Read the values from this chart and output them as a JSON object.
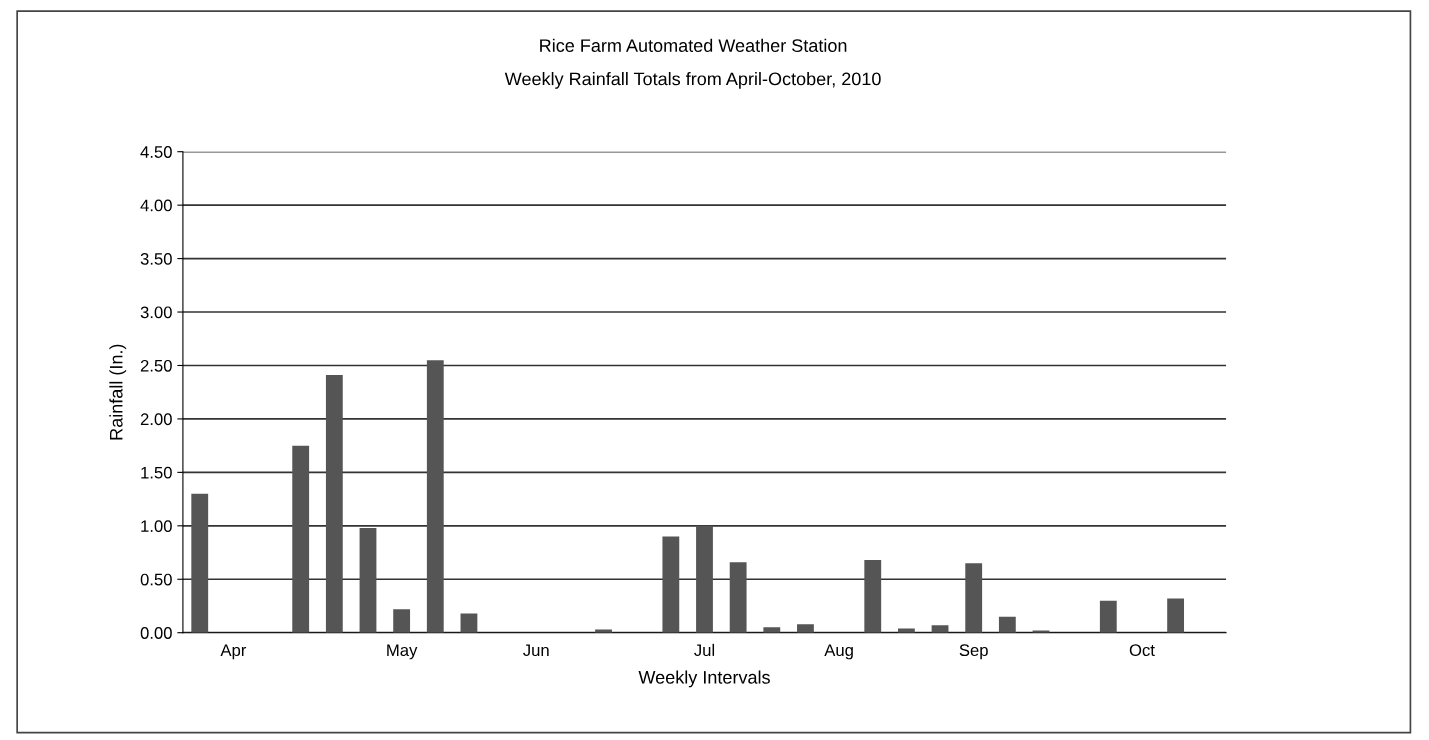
{
  "chart_data": {
    "type": "bar",
    "title": "Rice Farm Automated Weather Station",
    "subtitle": "Weekly Rainfall Totals from April-October, 2010",
    "xlabel": "Weekly Intervals",
    "ylabel": "Rainfall (In.)",
    "categories": [
      null,
      "Apr",
      null,
      null,
      null,
      null,
      "May",
      null,
      null,
      null,
      "Jun",
      null,
      null,
      null,
      null,
      "Jul",
      null,
      null,
      null,
      "Aug",
      null,
      null,
      null,
      "Sep",
      null,
      null,
      null,
      null,
      "Oct",
      null,
      null
    ],
    "values": [
      1.3,
      0,
      0,
      1.75,
      2.41,
      0.98,
      0.22,
      2.55,
      0.18,
      0,
      0,
      0,
      0.03,
      0,
      0.9,
      1.0,
      0.66,
      0.05,
      0.08,
      0,
      0.68,
      0.04,
      0.07,
      0.65,
      0.15,
      0.02,
      0,
      0.3,
      0,
      0.32,
      0
    ],
    "color": "#555555",
    "ylim": [
      0,
      4.5
    ],
    "yticks": [
      {
        "value": 0,
        "label": "0.00"
      },
      {
        "value": 0.5,
        "label": "0.50"
      },
      {
        "value": 1,
        "label": "1.00"
      },
      {
        "value": 1.5,
        "label": "1.50"
      },
      {
        "value": 2,
        "label": "2.00"
      },
      {
        "value": 2.5,
        "label": "2.50"
      },
      {
        "value": 3,
        "label": "3.00"
      },
      {
        "value": 3.5,
        "label": "3.50"
      },
      {
        "value": 4,
        "label": "4.00"
      },
      {
        "value": 4.5,
        "label": "4.50"
      }
    ],
    "grid": "y",
    "legend": false
  }
}
